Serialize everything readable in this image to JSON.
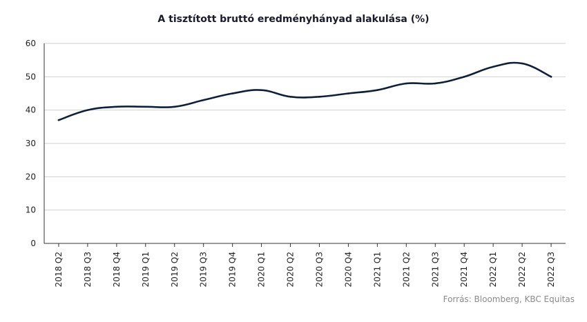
{
  "chart_data": {
    "type": "line",
    "title": "A tisztított bruttó eredményhányad alakulása (%)",
    "categories": [
      "2018 Q2",
      "2018 Q3",
      "2018 Q4",
      "2019 Q1",
      "2019 Q2",
      "2019 Q3",
      "2019 Q4",
      "2020 Q1",
      "2020 Q2",
      "2020 Q3",
      "2020 Q4",
      "2021 Q1",
      "2021 Q2",
      "2021 Q3",
      "2021 Q4",
      "2022 Q1",
      "2022 Q2",
      "2022 Q3"
    ],
    "series": [
      {
        "values": [
          37,
          40,
          41,
          41,
          41,
          43,
          45,
          46,
          44,
          44,
          45,
          46,
          48,
          48,
          50,
          53,
          54,
          50
        ]
      }
    ],
    "ylim": [
      0,
      60
    ],
    "yticks": [
      0,
      10,
      20,
      30,
      40,
      50,
      60
    ],
    "xlabel": "",
    "ylabel": "",
    "grid": true,
    "line_color": "#0d1f3c"
  },
  "source": "Forrás: Bloomberg, KBC Equitas"
}
